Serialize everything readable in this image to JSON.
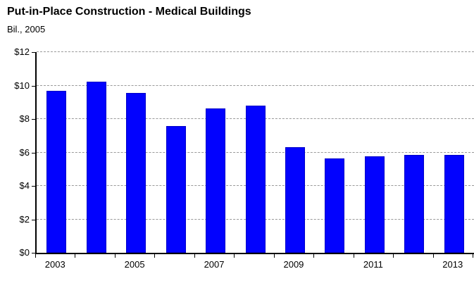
{
  "title": "Put-in-Place Construction - Medical Buildings",
  "subtitle": "Bil., 2005",
  "chart_data": {
    "type": "bar",
    "title": "Put-in-Place Construction - Medical Buildings",
    "subtitle": "Bil., 2005",
    "categories": [
      "2003",
      "2004",
      "2005",
      "2006",
      "2007",
      "2008",
      "2009",
      "2010",
      "2011",
      "2012",
      "2013"
    ],
    "values": [
      9.7,
      10.25,
      9.55,
      7.6,
      8.65,
      8.8,
      6.3,
      5.65,
      5.75,
      5.85,
      5.85
    ],
    "xlabel": "",
    "ylabel": "Bil., 2005",
    "ylim": [
      0,
      12
    ],
    "ytick_step": 2,
    "ytick_labels": [
      "$0",
      "$2",
      "$4",
      "$6",
      "$8",
      "$10",
      "$12"
    ],
    "xtick_labels": [
      "2003",
      "2005",
      "2007",
      "2009",
      "2011",
      "2013"
    ],
    "grid": "horizontal-dashed",
    "legend": null,
    "colors": {
      "bar_fill": "#0202FE",
      "bar_border": "#0000C8",
      "gridline": "#999999",
      "axis": "#000000",
      "text": "#000000",
      "background": "#FFFFFF"
    }
  }
}
